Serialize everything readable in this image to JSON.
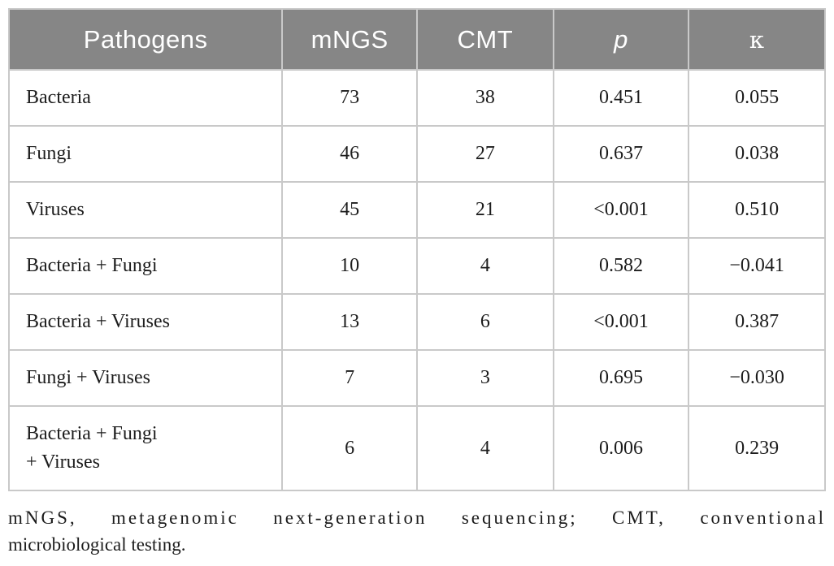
{
  "table": {
    "columns": [
      {
        "label": "Pathogens"
      },
      {
        "label": "mNGS"
      },
      {
        "label": "CMT"
      },
      {
        "label": "p"
      },
      {
        "label": "κ"
      }
    ],
    "rows": [
      {
        "pathogen": "Bacteria",
        "mngs": "73",
        "cmt": "38",
        "p": "0.451",
        "kappa": "0.055"
      },
      {
        "pathogen": "Fungi",
        "mngs": "46",
        "cmt": "27",
        "p": "0.637",
        "kappa": "0.038"
      },
      {
        "pathogen": "Viruses",
        "mngs": "45",
        "cmt": "21",
        "p": "<0.001",
        "kappa": "0.510"
      },
      {
        "pathogen": "Bacteria + Fungi",
        "mngs": "10",
        "cmt": "4",
        "p": "0.582",
        "kappa": "−0.041"
      },
      {
        "pathogen": "Bacteria + Viruses",
        "mngs": "13",
        "cmt": "6",
        "p": "<0.001",
        "kappa": "0.387"
      },
      {
        "pathogen": "Fungi + Viruses",
        "mngs": "7",
        "cmt": "3",
        "p": "0.695",
        "kappa": "−0.030"
      },
      {
        "pathogen": "Bacteria + Fungi\n+ Viruses",
        "mngs": "6",
        "cmt": "4",
        "p": "0.006",
        "kappa": "0.239"
      }
    ]
  },
  "footnote": {
    "line1": "mNGS, metagenomic next-generation sequencing; CMT, conventional",
    "line2": "microbiological testing."
  },
  "colors": {
    "header_bg": "#868686",
    "header_text": "#ffffff",
    "border": "#c9c9c9",
    "body_text": "#1c1c1c"
  }
}
